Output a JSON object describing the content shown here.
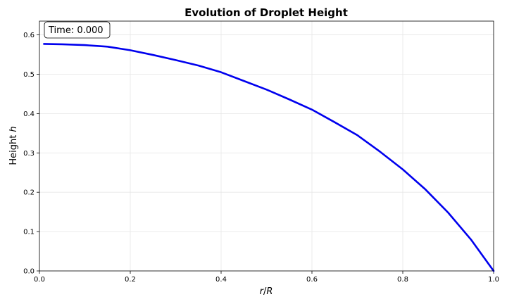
{
  "chart_data": {
    "type": "line",
    "title": "Evolution of Droplet Height",
    "xlabel_main": "r",
    "xlabel_sep": "/",
    "xlabel_sub": "R",
    "ylabel_main": "Height ",
    "ylabel_var": "h",
    "xlim": [
      0.0,
      1.0
    ],
    "ylim": [
      0.0,
      0.635
    ],
    "xticks": [
      0.0,
      0.2,
      0.4,
      0.6,
      0.8,
      1.0
    ],
    "xtick_labels": [
      "0.0",
      "0.2",
      "0.4",
      "0.6",
      "0.8",
      "1.0"
    ],
    "yticks": [
      0.0,
      0.1,
      0.2,
      0.3,
      0.4,
      0.5,
      0.6
    ],
    "ytick_labels": [
      "0.0",
      "0.1",
      "0.2",
      "0.3",
      "0.4",
      "0.5",
      "0.6"
    ],
    "grid": true,
    "series": [
      {
        "color": "#0000ee",
        "x": [
          0.01,
          0.05,
          0.1,
          0.15,
          0.2,
          0.25,
          0.3,
          0.35,
          0.4,
          0.45,
          0.5,
          0.55,
          0.6,
          0.65,
          0.7,
          0.75,
          0.8,
          0.85,
          0.9,
          0.95,
          1.0
        ],
        "y": [
          0.577,
          0.576,
          0.574,
          0.57,
          0.561,
          0.549,
          0.536,
          0.522,
          0.505,
          0.483,
          0.461,
          0.436,
          0.41,
          0.378,
          0.345,
          0.303,
          0.258,
          0.207,
          0.148,
          0.08,
          0.0
        ]
      }
    ],
    "annotation": {
      "text": "Time: 0.000",
      "position": "top-left"
    }
  }
}
